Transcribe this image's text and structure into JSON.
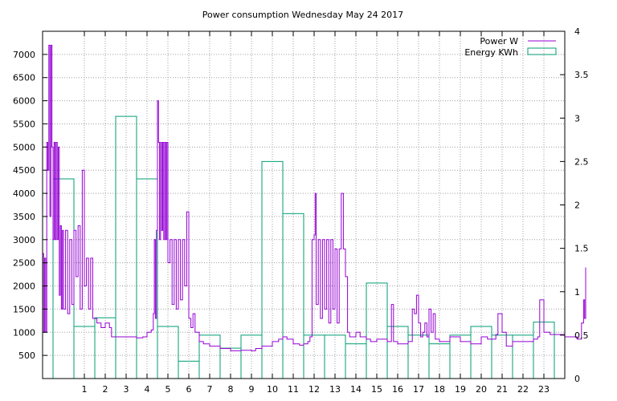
{
  "chart_data": {
    "type": "line+bar",
    "title": "Power consumption Wednesday May 24 2017",
    "x": {
      "range": [
        -1,
        24
      ],
      "ticks": [
        1,
        2,
        3,
        4,
        5,
        6,
        7,
        8,
        9,
        10,
        11,
        12,
        13,
        14,
        15,
        16,
        17,
        18,
        19,
        20,
        21,
        22,
        23
      ]
    },
    "y_left": {
      "range": [
        0,
        7500
      ],
      "ticks": [
        500,
        1000,
        1500,
        2000,
        2500,
        3000,
        3500,
        4000,
        4500,
        5000,
        5500,
        6000,
        6500,
        7000
      ]
    },
    "y_right": {
      "range": [
        0,
        4
      ],
      "ticks": [
        "0",
        "0.5",
        "1",
        "1.5",
        "2",
        "2.5",
        "3",
        "3.5",
        "4"
      ]
    },
    "grid": true,
    "legend_position": "top-right",
    "series": [
      {
        "name": "Power W",
        "axis": "left",
        "color": "#9400d3",
        "style": "step-line",
        "points": [
          [
            -1,
            2700
          ],
          [
            -0.95,
            1000
          ],
          [
            -0.9,
            2600
          ],
          [
            -0.85,
            1000
          ],
          [
            -0.8,
            5100
          ],
          [
            -0.75,
            4500
          ],
          [
            -0.7,
            7200
          ],
          [
            -0.65,
            3500
          ],
          [
            -0.6,
            7200
          ],
          [
            -0.55,
            5000
          ],
          [
            -0.5,
            3000
          ],
          [
            -0.45,
            5100
          ],
          [
            -0.4,
            3000
          ],
          [
            -0.35,
            5100
          ],
          [
            -0.3,
            3000
          ],
          [
            -0.25,
            5000
          ],
          [
            -0.2,
            1800
          ],
          [
            -0.15,
            3300
          ],
          [
            -0.1,
            1500
          ],
          [
            -0.05,
            3200
          ],
          [
            0,
            1500
          ],
          [
            0.1,
            3200
          ],
          [
            0.2,
            1400
          ],
          [
            0.3,
            3000
          ],
          [
            0.4,
            1600
          ],
          [
            0.5,
            3200
          ],
          [
            0.6,
            2200
          ],
          [
            0.7,
            3300
          ],
          [
            0.8,
            1500
          ],
          [
            0.9,
            4500
          ],
          [
            1,
            2000
          ],
          [
            1.1,
            2600
          ],
          [
            1.2,
            1500
          ],
          [
            1.3,
            2600
          ],
          [
            1.4,
            1300
          ],
          [
            1.6,
            1200
          ],
          [
            1.8,
            1100
          ],
          [
            2,
            1200
          ],
          [
            2.2,
            1100
          ],
          [
            2.3,
            900
          ],
          [
            2.5,
            900
          ],
          [
            3,
            900
          ],
          [
            3.5,
            880
          ],
          [
            3.8,
            900
          ],
          [
            4,
            1000
          ],
          [
            4.2,
            1050
          ],
          [
            4.3,
            1400
          ],
          [
            4.35,
            3000
          ],
          [
            4.4,
            1300
          ],
          [
            4.45,
            3200
          ],
          [
            4.5,
            6000
          ],
          [
            4.55,
            5100
          ],
          [
            4.6,
            3000
          ],
          [
            4.65,
            5100
          ],
          [
            4.7,
            3200
          ],
          [
            4.75,
            5100
          ],
          [
            4.8,
            3000
          ],
          [
            4.85,
            5100
          ],
          [
            4.9,
            3000
          ],
          [
            4.95,
            5100
          ],
          [
            5,
            2500
          ],
          [
            5.1,
            3000
          ],
          [
            5.2,
            1600
          ],
          [
            5.3,
            3000
          ],
          [
            5.4,
            1500
          ],
          [
            5.5,
            3000
          ],
          [
            5.6,
            1700
          ],
          [
            5.7,
            3000
          ],
          [
            5.8,
            2000
          ],
          [
            5.9,
            3600
          ],
          [
            6,
            1300
          ],
          [
            6.1,
            1100
          ],
          [
            6.2,
            1400
          ],
          [
            6.3,
            1000
          ],
          [
            6.4,
            1000
          ],
          [
            6.5,
            800
          ],
          [
            6.7,
            750
          ],
          [
            7,
            700
          ],
          [
            7.3,
            700
          ],
          [
            7.5,
            650
          ],
          [
            8,
            600
          ],
          [
            8.5,
            610
          ],
          [
            9,
            600
          ],
          [
            9.2,
            650
          ],
          [
            9.5,
            700
          ],
          [
            10,
            800
          ],
          [
            10.3,
            850
          ],
          [
            10.5,
            900
          ],
          [
            10.7,
            850
          ],
          [
            11,
            750
          ],
          [
            11.3,
            720
          ],
          [
            11.5,
            750
          ],
          [
            11.7,
            800
          ],
          [
            11.8,
            900
          ],
          [
            11.9,
            3000
          ],
          [
            12,
            3100
          ],
          [
            12.05,
            4000
          ],
          [
            12.1,
            1600
          ],
          [
            12.2,
            3000
          ],
          [
            12.3,
            1300
          ],
          [
            12.4,
            3000
          ],
          [
            12.5,
            1500
          ],
          [
            12.6,
            3000
          ],
          [
            12.7,
            1200
          ],
          [
            12.8,
            3000
          ],
          [
            12.9,
            1500
          ],
          [
            13,
            2800
          ],
          [
            13.1,
            1200
          ],
          [
            13.2,
            2800
          ],
          [
            13.3,
            4000
          ],
          [
            13.4,
            2800
          ],
          [
            13.5,
            2200
          ],
          [
            13.6,
            1000
          ],
          [
            13.7,
            900
          ],
          [
            14,
            1000
          ],
          [
            14.2,
            900
          ],
          [
            14.5,
            850
          ],
          [
            14.7,
            800
          ],
          [
            15,
            850
          ],
          [
            15.3,
            850
          ],
          [
            15.5,
            800
          ],
          [
            15.7,
            1600
          ],
          [
            15.8,
            800
          ],
          [
            16,
            750
          ],
          [
            16.3,
            750
          ],
          [
            16.5,
            800
          ],
          [
            16.7,
            1500
          ],
          [
            16.8,
            1400
          ],
          [
            16.9,
            1800
          ],
          [
            17,
            1200
          ],
          [
            17.1,
            900
          ],
          [
            17.2,
            1000
          ],
          [
            17.3,
            1200
          ],
          [
            17.4,
            900
          ],
          [
            17.5,
            1500
          ],
          [
            17.6,
            1000
          ],
          [
            17.7,
            1400
          ],
          [
            17.8,
            850
          ],
          [
            18,
            800
          ],
          [
            18.3,
            800
          ],
          [
            18.5,
            900
          ],
          [
            19,
            800
          ],
          [
            19.5,
            750
          ],
          [
            20,
            900
          ],
          [
            20.3,
            850
          ],
          [
            20.7,
            950
          ],
          [
            20.8,
            1400
          ],
          [
            21,
            1000
          ],
          [
            21.2,
            700
          ],
          [
            21.5,
            800
          ],
          [
            22,
            800
          ],
          [
            22.5,
            850
          ],
          [
            22.7,
            900
          ],
          [
            22.8,
            1700
          ],
          [
            23,
            1000
          ],
          [
            23.3,
            950
          ],
          [
            23.6,
            950
          ],
          [
            24,
            900
          ],
          [
            24.3,
            900
          ],
          [
            24.6,
            850
          ],
          [
            24.8,
            1200
          ],
          [
            24.9,
            1700
          ],
          [
            24.95,
            1300
          ],
          [
            25,
            2400
          ]
        ]
      },
      {
        "name": "Energy KWh",
        "axis": "right",
        "color": "#009e73",
        "style": "boxes",
        "bars": [
          [
            0,
            2.3
          ],
          [
            1,
            0.6
          ],
          [
            2,
            0.7
          ],
          [
            3,
            3.02
          ],
          [
            4,
            2.3
          ],
          [
            5,
            0.6
          ],
          [
            6,
            0.2
          ],
          [
            7,
            0.5
          ],
          [
            8,
            0.35
          ],
          [
            9,
            0.5
          ],
          [
            10,
            2.5
          ],
          [
            11,
            1.9
          ],
          [
            12,
            0.5
          ],
          [
            13,
            0.5
          ],
          [
            14,
            0.4
          ],
          [
            15,
            1.1
          ],
          [
            16,
            0.6
          ],
          [
            17,
            0.5
          ],
          [
            18,
            0.4
          ],
          [
            19,
            0.5
          ],
          [
            20,
            0.6
          ],
          [
            21,
            0.5
          ],
          [
            22,
            0.5
          ],
          [
            23,
            0.65
          ]
        ]
      }
    ]
  }
}
